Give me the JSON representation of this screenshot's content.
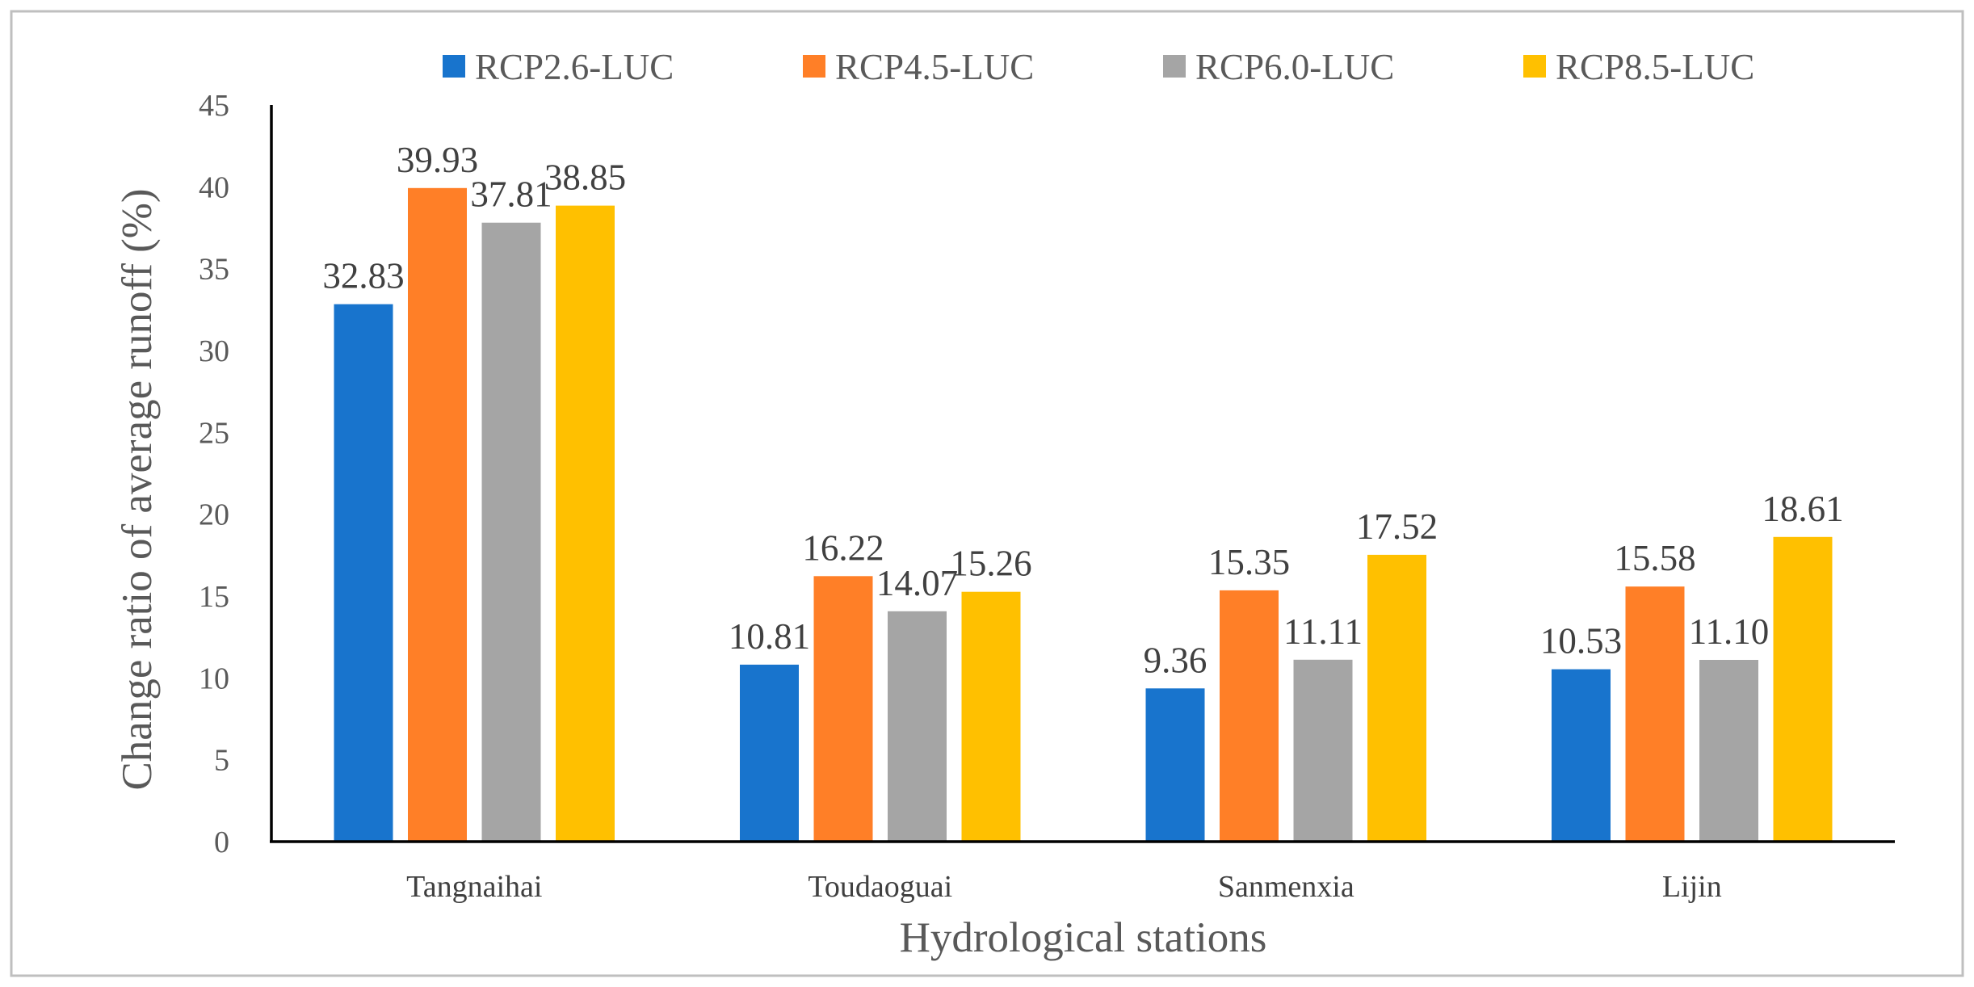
{
  "chart_data": {
    "type": "bar",
    "title": "",
    "xlabel": "Hydrological stations",
    "ylabel": "Change ratio of average runoff (%)",
    "ylim": [
      0,
      45
    ],
    "yticks": [
      0,
      5,
      10,
      15,
      20,
      25,
      30,
      35,
      40,
      45
    ],
    "grid": false,
    "legend_position": "top",
    "categories": [
      "Tangnaihai",
      "Toudaoguai",
      "Sanmenxia",
      "Lijin"
    ],
    "series": [
      {
        "name": "RCP2.6-LUC",
        "color": "#1874CD",
        "values": [
          32.83,
          10.81,
          9.36,
          10.53
        ],
        "labels": [
          "32.83",
          "10.81",
          "9.36",
          "10.53"
        ]
      },
      {
        "name": "RCP4.5-LUC",
        "color": "#FF7F27",
        "values": [
          39.93,
          16.22,
          15.35,
          15.58
        ],
        "labels": [
          "39.93",
          "16.22",
          "15.35",
          "15.58"
        ]
      },
      {
        "name": "RCP6.0-LUC",
        "color": "#A5A5A5",
        "values": [
          37.81,
          14.07,
          11.11,
          11.1
        ],
        "labels": [
          "37.81",
          "14.07",
          "11.11",
          "11.10"
        ]
      },
      {
        "name": "RCP8.5-LUC",
        "color": "#FFC000",
        "values": [
          38.85,
          15.26,
          17.52,
          18.61
        ],
        "labels": [
          "38.85",
          "15.26",
          "17.52",
          "18.61"
        ]
      }
    ]
  }
}
